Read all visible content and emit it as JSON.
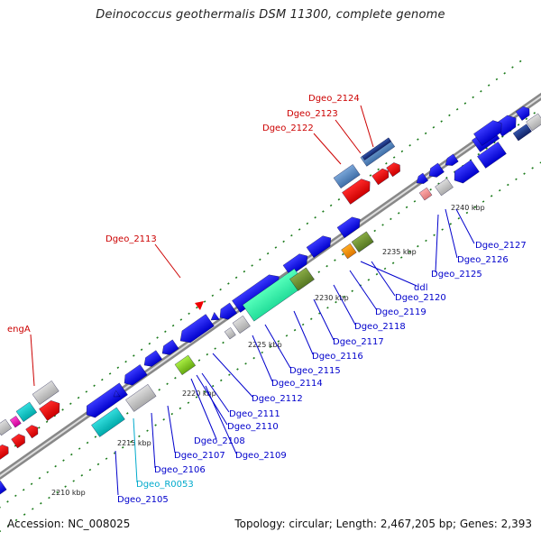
{
  "title": "Deinococcus geothermalis DSM 11300, complete genome",
  "footer": {
    "accession": "Accession: NC_008025",
    "summary": "Topology: circular; Length: 2,467,205 bp; Genes: 2,393"
  },
  "kbp_labels": [
    "2210 kbp",
    "2215 kbp",
    "2220 kbp",
    "2225 kbp",
    "2230 kbp",
    "2235 kbp",
    "2240 kbp"
  ],
  "gene_labels": {
    "dgeo_2124": "Dgeo_2124",
    "dgeo_2123": "Dgeo_2123",
    "dgeo_2122": "Dgeo_2122",
    "dgeo_2113": "Dgeo_2113",
    "enga": "engA",
    "dgeo_2127": "Dgeo_2127",
    "dgeo_2126": "Dgeo_2126",
    "dgeo_2125": "Dgeo_2125",
    "ddl": "ddl",
    "dgeo_2120": "Dgeo_2120",
    "dgeo_2119": "Dgeo_2119",
    "dgeo_2118": "Dgeo_2118",
    "dgeo_2117": "Dgeo_2117",
    "dgeo_2116": "Dgeo_2116",
    "dgeo_2115": "Dgeo_2115",
    "dgeo_2114": "Dgeo_2114",
    "dgeo_2112": "Dgeo_2112",
    "dgeo_2111": "Dgeo_2111",
    "dgeo_2110": "Dgeo_2110",
    "dgeo_2108": "Dgeo_2108",
    "dgeo_2109": "Dgeo_2109",
    "dgeo_2107": "Dgeo_2107",
    "dgeo_2106": "Dgeo_2106",
    "dgeo_r0053": "Dgeo_R0053",
    "dgeo_2105": "Dgeo_2105"
  },
  "colors": {
    "cds": "#0000ee",
    "red_cds": "#ee0000",
    "rna": "#00cccc",
    "grey": "#bbbbbb",
    "backbone": "#888888",
    "tick": "#1a7a1a",
    "label_red": "#cc0000",
    "label_blue": "#0000cc",
    "label_cyan": "#00aacc"
  }
}
